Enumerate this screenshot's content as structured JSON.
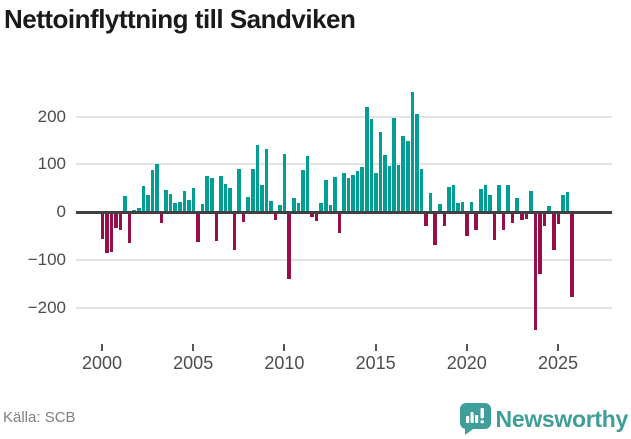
{
  "title": "Nettoinflyttning till Sandviken",
  "source": "Källa: SCB",
  "branding": {
    "name": "Newsworthy"
  },
  "colors": {
    "positive": "#029e96",
    "negative": "#970e49",
    "axis_line": "#404040",
    "grid_line": "#e4e4e4",
    "tick_text": "#4d4d4d",
    "title_text": "#1a1a1a",
    "source_text": "#808080",
    "brand_teal": "#3F9E99"
  },
  "chart_data": {
    "type": "bar",
    "title": "Nettoinflyttning till Sandviken",
    "frequency": "quarterly",
    "start_period": "2000-Q1",
    "end_period": "2025-Q4",
    "grid": "horizontal",
    "legend": "none",
    "ylim": [
      -260,
      270
    ],
    "y_ticks": [
      {
        "label": "200",
        "value": 200
      },
      {
        "label": "100",
        "value": 100
      },
      {
        "label": "0",
        "value": 0
      },
      {
        "label": "−100",
        "value": -100
      },
      {
        "label": "−200",
        "value": -200
      }
    ],
    "x_ticks": [
      {
        "label": "2000",
        "bar_index": 0
      },
      {
        "label": "2005",
        "bar_index": 20
      },
      {
        "label": "2010",
        "bar_index": 40
      },
      {
        "label": "2015",
        "bar_index": 60
      },
      {
        "label": "2020",
        "bar_index": 80
      },
      {
        "label": "2025",
        "bar_index": 100
      }
    ],
    "values": [
      -52,
      -82,
      -79,
      -29,
      -33,
      34,
      -61,
      6,
      10,
      55,
      36,
      89,
      101,
      -19,
      48,
      39,
      20,
      21,
      44,
      27,
      51,
      -59,
      18,
      76,
      72,
      -57,
      77,
      60,
      51,
      -76,
      90,
      -17,
      33,
      90,
      142,
      57,
      133,
      24,
      -13,
      16,
      122,
      -137,
      31,
      20,
      88,
      118,
      -7,
      -14,
      19,
      67,
      15,
      75,
      -39,
      82,
      72,
      78,
      86,
      95,
      220,
      195,
      83,
      168,
      121,
      98,
      197,
      100,
      161,
      150,
      252,
      206,
      91,
      -26,
      40,
      -65,
      18,
      -26,
      53,
      57,
      20,
      23,
      -45,
      23,
      -33,
      50,
      58,
      36,
      -55,
      57,
      -33,
      58,
      -19,
      30,
      -13,
      -10,
      45,
      -242,
      -126,
      -26,
      13,
      -75,
      -21,
      37,
      42,
      -174
    ]
  }
}
